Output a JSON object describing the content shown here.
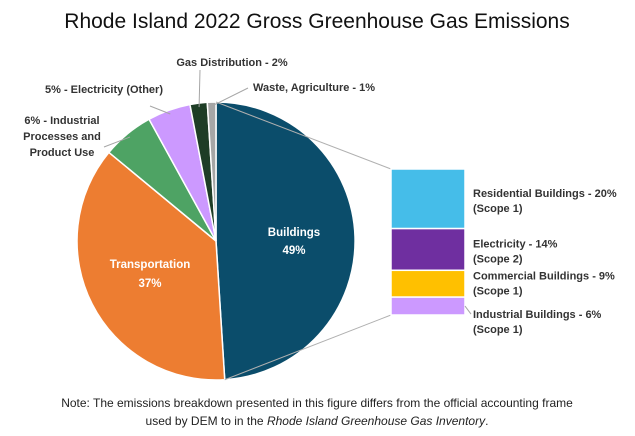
{
  "chart_data": {
    "type": "pie",
    "title": "Rhode Island 2022 Gross Greenhouse Gas Emissions",
    "slices": [
      {
        "label": "Buildings",
        "value": 49,
        "value_label": "49%",
        "color": "#0b4d6b"
      },
      {
        "label": "Transportation",
        "value": 37,
        "value_label": "37%",
        "color": "#ed7d31"
      },
      {
        "label": "6% - Industrial Processes and Product Use",
        "value": 6,
        "color": "#4ea364"
      },
      {
        "label": "5% - Electricity (Other)",
        "value": 5,
        "color": "#cc99ff"
      },
      {
        "label": "Gas Distribution - 2%",
        "value": 2,
        "color": "#1e3d26"
      },
      {
        "label": "Waste, Agriculture - 1%",
        "value": 1,
        "color": "#a6a6a6"
      }
    ],
    "breakdown": {
      "of": "Buildings",
      "items": [
        {
          "label": "Residential Buildings - 20%",
          "scope": "(Scope 1)",
          "value": 20,
          "color": "#45bde9"
        },
        {
          "label": "Electricity - 14%",
          "scope": "(Scope 2)",
          "value": 14,
          "color": "#6f2fa0"
        },
        {
          "label": "Commercial Buildings - 9%",
          "scope": "(Scope 1)",
          "value": 9,
          "color": "#ffc000"
        },
        {
          "label": "Industrial Buildings - 6%",
          "scope": "(Scope 1)",
          "value": 6,
          "color": "#cc99ff"
        }
      ]
    }
  },
  "note": {
    "line1": "Note: The emissions breakdown presented in this figure differs from the official accounting frame",
    "line2_prefix": "used by DEM to in the ",
    "line2_italic": "Rhode Island Greenhouse Gas Inventory",
    "line2_suffix": "."
  },
  "ext_labels": {
    "industrial": [
      "6% - Industrial",
      "Processes and",
      "Product Use"
    ],
    "electricity_other": "5% - Electricity (Other)",
    "gas_distribution": "Gas Distribution - 2%",
    "waste_agriculture": "Waste, Agriculture - 1%"
  }
}
